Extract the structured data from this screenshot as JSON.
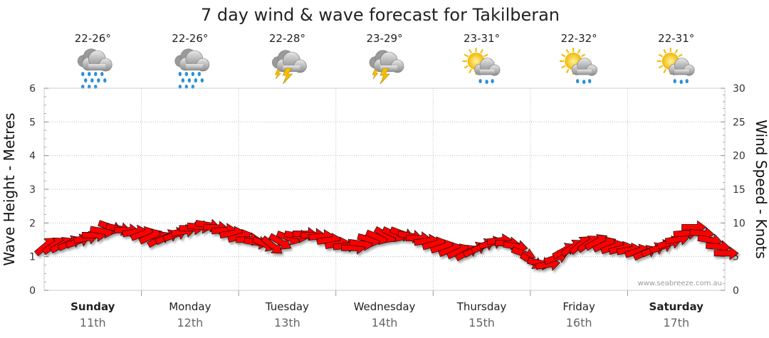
{
  "chart_data": {
    "type": "line",
    "title": "7 day wind & wave forecast for Takilberan",
    "ylabel_left": "Wave Height - Metres",
    "ylabel_right": "Wind Speed - Knots",
    "ylim_left": [
      0,
      6
    ],
    "ylim_right": [
      0,
      30
    ],
    "yticks_left": [
      "0",
      "1",
      "2",
      "3",
      "4",
      "5",
      "6"
    ],
    "yticks_right": [
      "0",
      "5",
      "10",
      "15",
      "20",
      "25",
      "30"
    ],
    "grid": true,
    "credit": "www.seabreeze.com.au",
    "days": [
      {
        "day": "Sunday",
        "date": "11th",
        "temp": "22-26°",
        "icon": "rain-cloud-icon",
        "bold": true
      },
      {
        "day": "Monday",
        "date": "12th",
        "temp": "22-26°",
        "icon": "rain-cloud-icon",
        "bold": false
      },
      {
        "day": "Tuesday",
        "date": "13th",
        "temp": "22-28°",
        "icon": "thunderstorm-icon",
        "bold": false
      },
      {
        "day": "Wednesday",
        "date": "14th",
        "temp": "23-29°",
        "icon": "thunderstorm-icon",
        "bold": false
      },
      {
        "day": "Thursday",
        "date": "15th",
        "temp": "23-31°",
        "icon": "sun-showers-icon",
        "bold": false
      },
      {
        "day": "Friday",
        "date": "16th",
        "temp": "22-32°",
        "icon": "sun-showers-icon",
        "bold": false
      },
      {
        "day": "Saturday",
        "date": "17th",
        "temp": "22-31°",
        "icon": "sun-showers-icon",
        "bold": true
      }
    ],
    "wind_series": {
      "name": "Wind Speed",
      "unit": "knots",
      "color": "#ff0000",
      "x_days": [
        0.0,
        0.17,
        0.34,
        0.5,
        0.67,
        0.84,
        1.0,
        1.17,
        1.34,
        1.5,
        1.67,
        1.84,
        2.0,
        2.17,
        2.34,
        2.5,
        2.67,
        2.84,
        3.0,
        3.17,
        3.34,
        3.5,
        3.67,
        3.84,
        4.0,
        4.17,
        4.34,
        4.5,
        4.67,
        4.84,
        5.0,
        5.17,
        5.34,
        5.5,
        5.67,
        5.84,
        6.0,
        6.17,
        6.34,
        6.5,
        6.67,
        6.84,
        7.0
      ],
      "knots": [
        6.6,
        6.8,
        7.3,
        8.2,
        9.4,
        8.9,
        8.4,
        7.6,
        8.3,
        9.2,
        9.7,
        8.9,
        8.0,
        7.1,
        6.6,
        7.8,
        8.4,
        8.0,
        6.9,
        6.3,
        7.6,
        8.2,
        8.4,
        7.7,
        6.9,
        6.0,
        5.6,
        6.6,
        7.4,
        6.5,
        4.3,
        3.8,
        6.0,
        6.8,
        7.2,
        6.4,
        6.0,
        5.6,
        6.5,
        7.6,
        9.4,
        7.4,
        5.5
      ],
      "direction_deg": [
        20,
        30,
        40,
        60,
        80,
        60,
        40,
        30,
        40,
        60,
        70,
        55,
        45,
        70,
        100,
        80,
        60,
        55,
        50,
        60,
        75,
        90,
        80,
        60,
        45,
        40,
        30,
        35,
        55,
        70,
        90,
        50,
        30,
        20,
        30,
        40,
        50,
        35,
        40,
        50,
        60,
        70,
        60
      ]
    }
  }
}
